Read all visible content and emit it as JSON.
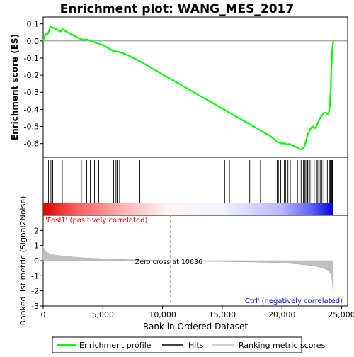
{
  "chart_data": {
    "type": "line",
    "title": "Enrichment plot: WANG_MES_2017",
    "xlabel": "Rank in Ordered Dataset",
    "xlim": [
      0,
      25500
    ],
    "x_ticks": [
      0,
      5000,
      10000,
      15000,
      20000,
      25000
    ],
    "x_tick_labels": [
      "0",
      "5,000",
      "10,000",
      "15,000",
      "20,000",
      "25,000"
    ],
    "es_panel": {
      "ylabel": "Enrichment score (ES)",
      "ylim": [
        -0.68,
        0.14
      ],
      "y_ticks": [
        0.1,
        0.0,
        -0.1,
        -0.2,
        -0.3,
        -0.4,
        -0.5,
        -0.6
      ],
      "y_tick_labels": [
        "0.1",
        "0.0",
        "-0.1",
        "-0.2",
        "-0.3",
        "-0.4",
        "-0.5",
        "-0.6"
      ],
      "series_name": "Enrichment profile",
      "color": "#00ff00",
      "x": [
        0,
        100,
        200,
        350,
        500,
        600,
        700,
        900,
        1100,
        1300,
        1500,
        1600,
        1800,
        2200,
        2600,
        3000,
        3200,
        3400,
        3600,
        3800,
        4000,
        4200,
        4600,
        5000,
        5400,
        5800,
        6000,
        6200,
        6400,
        6600,
        7000,
        8000,
        9000,
        10000,
        11000,
        12000,
        13000,
        14000,
        15000,
        16000,
        17000,
        18000,
        19000,
        19600,
        19800,
        20000,
        20200,
        20400,
        20600,
        20800,
        21000,
        21200,
        21400,
        21600,
        21800,
        21900,
        22000,
        22100,
        22200,
        22300,
        22400,
        22600,
        22800,
        23000,
        23200,
        23300,
        23500,
        23700,
        23900,
        24000,
        24050,
        24100,
        24150,
        24200,
        24250,
        24300
      ],
      "y": [
        0.0,
        0.02,
        0.04,
        0.035,
        0.06,
        0.085,
        0.08,
        0.075,
        0.07,
        0.06,
        0.055,
        0.07,
        0.06,
        0.045,
        0.03,
        0.015,
        0.01,
        0.005,
        0.01,
        0.005,
        0.0,
        -0.005,
        -0.015,
        -0.025,
        -0.04,
        -0.055,
        -0.06,
        -0.062,
        -0.065,
        -0.07,
        -0.08,
        -0.115,
        -0.155,
        -0.195,
        -0.235,
        -0.275,
        -0.315,
        -0.355,
        -0.395,
        -0.435,
        -0.475,
        -0.515,
        -0.555,
        -0.59,
        -0.595,
        -0.6,
        -0.598,
        -0.605,
        -0.602,
        -0.608,
        -0.615,
        -0.62,
        -0.63,
        -0.635,
        -0.625,
        -0.615,
        -0.59,
        -0.56,
        -0.54,
        -0.53,
        -0.51,
        -0.5,
        -0.51,
        -0.48,
        -0.45,
        -0.44,
        -0.42,
        -0.42,
        -0.43,
        -0.38,
        -0.33,
        -0.25,
        -0.15,
        -0.07,
        -0.03,
        0.005
      ]
    },
    "hits": {
      "series_name": "Hits",
      "x": [
        150,
        450,
        650,
        800,
        1600,
        3200,
        3650,
        3950,
        4300,
        4650,
        5900,
        6100,
        6200,
        6400,
        8100,
        15200,
        15600,
        16400,
        17300,
        18200,
        19600,
        19700,
        19900,
        20200,
        20300,
        20500,
        20700,
        21300,
        21600,
        21800,
        21900,
        22000,
        22100,
        22150,
        22250,
        22350,
        22500,
        22700,
        22900,
        23000,
        23100,
        23200,
        23350,
        23500,
        23800,
        24000,
        24050,
        24100,
        24150,
        24200,
        24250
      ]
    },
    "metric_panel": {
      "ylabel": "Ranked list metric (Signal2Noise)",
      "series_name": "Ranking metric scores",
      "ylim": [
        -3,
        3
      ],
      "y_ticks": [
        2,
        1,
        0,
        -1,
        -2,
        -3
      ],
      "y_tick_labels": [
        "2",
        "1",
        "0",
        "-1",
        "-2",
        "-3"
      ],
      "x": [
        0,
        50,
        150,
        300,
        500,
        800,
        1200,
        2000,
        3000,
        5000,
        7000,
        9000,
        10636,
        12000,
        15000,
        18000,
        20000,
        21000,
        22000,
        22500,
        23000,
        23500,
        23800,
        24000,
        24150,
        24250,
        24300
      ],
      "y": [
        0.95,
        0.8,
        0.65,
        0.55,
        0.47,
        0.4,
        0.35,
        0.28,
        0.2,
        0.12,
        0.07,
        0.03,
        0.0,
        -0.02,
        -0.06,
        -0.1,
        -0.15,
        -0.2,
        -0.28,
        -0.33,
        -0.4,
        -0.5,
        -0.6,
        -0.75,
        -1.0,
        -1.6,
        -2.8
      ]
    },
    "annotations": {
      "positive_label": "'Fosl1' (positively correlated)",
      "negative_label": "'Ctrl' (negatively correlated)",
      "zero_cross_label": "Zero cross at 10636",
      "zero_cross_x": 10636
    },
    "legend": {
      "placement": "bottom",
      "entries": [
        {
          "name": "Enrichment profile",
          "color": "#00ff00"
        },
        {
          "name": "Hits",
          "color": "#000000"
        },
        {
          "name": "Ranking metric scores",
          "color": "#c0c0c0"
        }
      ]
    },
    "colors": {
      "positive": "#ff0000",
      "negative": "#0000ff",
      "metric_fill": "#c0c0c0"
    }
  }
}
